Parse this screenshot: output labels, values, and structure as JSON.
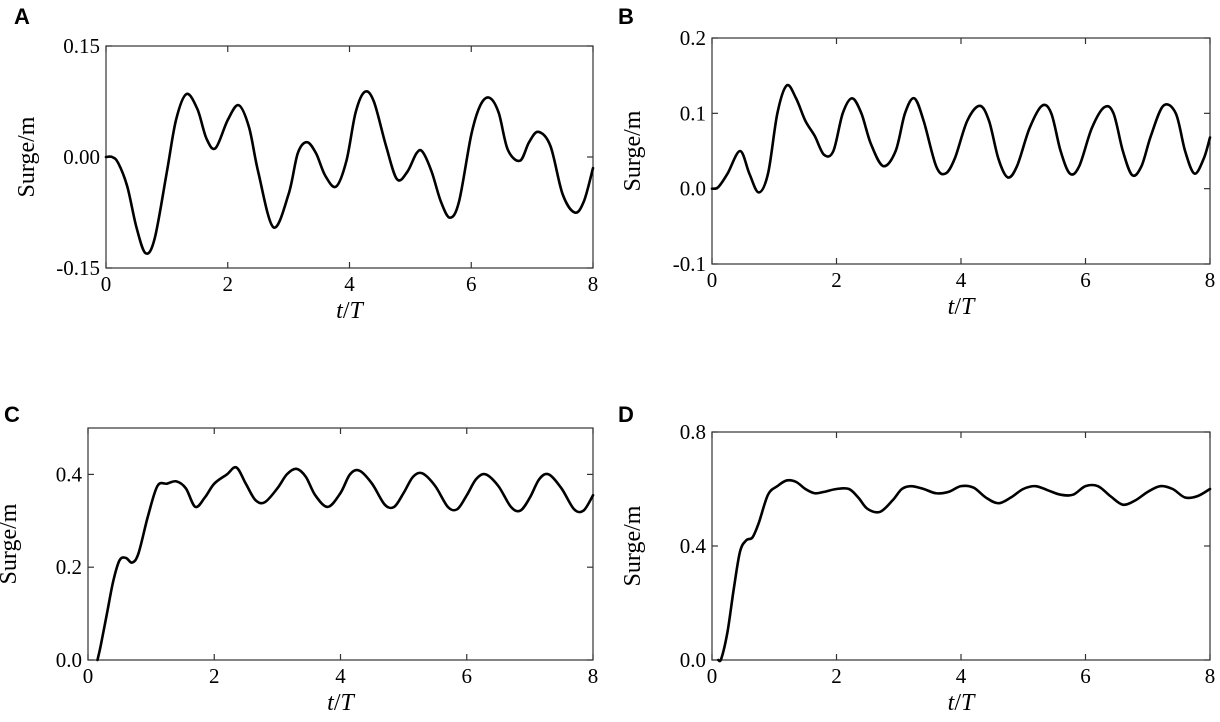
{
  "chart_data": [
    {
      "panel": "A",
      "type": "line",
      "xlabel": "t/T",
      "ylabel": "Surge/m",
      "xlim": [
        0,
        8
      ],
      "ylim": [
        -0.15,
        0.15
      ],
      "xticks": [
        "0",
        "2",
        "4",
        "6",
        "8"
      ],
      "yticks": [
        "-0.15",
        "0.00",
        "0.15"
      ],
      "grid": false,
      "series": [
        {
          "x": [
            0,
            0.1,
            0.2,
            0.35,
            0.5,
            0.65,
            0.8,
            1.0,
            1.15,
            1.32,
            1.5,
            1.65,
            1.8,
            2.0,
            2.18,
            2.35,
            2.5,
            2.75,
            3.0,
            3.15,
            3.3,
            3.45,
            3.6,
            3.78,
            3.95,
            4.1,
            4.25,
            4.4,
            4.6,
            4.78,
            4.95,
            5.1,
            5.2,
            5.35,
            5.5,
            5.65,
            5.8,
            6.0,
            6.15,
            6.3,
            6.45,
            6.6,
            6.8,
            6.95,
            7.1,
            7.3,
            7.5,
            7.7,
            7.85,
            8.0
          ],
          "y": [
            0.0,
            0.0,
            -0.008,
            -0.04,
            -0.095,
            -0.13,
            -0.11,
            -0.02,
            0.05,
            0.085,
            0.065,
            0.025,
            0.012,
            0.05,
            0.07,
            0.04,
            -0.02,
            -0.095,
            -0.05,
            0.005,
            0.02,
            0.005,
            -0.025,
            -0.04,
            -0.005,
            0.06,
            0.088,
            0.075,
            0.015,
            -0.03,
            -0.02,
            0.005,
            0.007,
            -0.02,
            -0.06,
            -0.082,
            -0.06,
            0.03,
            0.07,
            0.08,
            0.06,
            0.01,
            -0.005,
            0.02,
            0.034,
            0.015,
            -0.05,
            -0.075,
            -0.06,
            -0.015
          ]
        }
      ]
    },
    {
      "panel": "B",
      "type": "line",
      "xlabel": "t/T",
      "ylabel": "Surge/m",
      "xlim": [
        0,
        8
      ],
      "ylim": [
        -0.1,
        0.2
      ],
      "xticks": [
        "0",
        "2",
        "4",
        "6",
        "8"
      ],
      "yticks": [
        "-0.1",
        "0.0",
        "0.1",
        "0.2"
      ],
      "grid": false,
      "series": [
        {
          "x": [
            0,
            0.1,
            0.25,
            0.45,
            0.6,
            0.75,
            0.9,
            1.05,
            1.2,
            1.35,
            1.5,
            1.65,
            1.8,
            1.95,
            2.1,
            2.25,
            2.4,
            2.55,
            2.75,
            2.95,
            3.1,
            3.25,
            3.4,
            3.6,
            3.75,
            3.9,
            4.1,
            4.3,
            4.45,
            4.6,
            4.75,
            4.9,
            5.1,
            5.3,
            5.45,
            5.6,
            5.75,
            5.9,
            6.1,
            6.3,
            6.45,
            6.6,
            6.75,
            6.9,
            7.05,
            7.25,
            7.45,
            7.6,
            7.75,
            7.9,
            8.0
          ],
          "y": [
            0.0,
            0.002,
            0.02,
            0.05,
            0.02,
            -0.005,
            0.02,
            0.1,
            0.137,
            0.12,
            0.09,
            0.07,
            0.045,
            0.05,
            0.1,
            0.12,
            0.1,
            0.06,
            0.03,
            0.05,
            0.1,
            0.12,
            0.09,
            0.03,
            0.02,
            0.04,
            0.09,
            0.11,
            0.09,
            0.04,
            0.015,
            0.03,
            0.08,
            0.11,
            0.1,
            0.05,
            0.02,
            0.03,
            0.08,
            0.108,
            0.1,
            0.05,
            0.018,
            0.03,
            0.07,
            0.11,
            0.1,
            0.05,
            0.02,
            0.04,
            0.068
          ]
        }
      ]
    },
    {
      "panel": "C",
      "type": "line",
      "xlabel": "t/T",
      "ylabel": "Surge/m",
      "xlim": [
        0,
        8
      ],
      "ylim": [
        0.0,
        0.5
      ],
      "xticks": [
        "0",
        "2",
        "4",
        "6",
        "8"
      ],
      "yticks": [
        "0.0",
        "0.2",
        "0.4"
      ],
      "grid": false,
      "series": [
        {
          "x": [
            0.15,
            0.2,
            0.3,
            0.4,
            0.5,
            0.6,
            0.7,
            0.8,
            0.95,
            1.1,
            1.25,
            1.4,
            1.55,
            1.7,
            1.85,
            2.0,
            2.2,
            2.35,
            2.5,
            2.65,
            2.8,
            3.0,
            3.15,
            3.3,
            3.45,
            3.6,
            3.8,
            4.0,
            4.15,
            4.3,
            4.5,
            4.7,
            4.85,
            5.0,
            5.15,
            5.3,
            5.5,
            5.7,
            5.85,
            6.0,
            6.15,
            6.3,
            6.5,
            6.7,
            6.85,
            7.0,
            7.15,
            7.3,
            7.5,
            7.7,
            7.85,
            8.0
          ],
          "y": [
            0.0,
            0.03,
            0.1,
            0.17,
            0.215,
            0.22,
            0.21,
            0.23,
            0.31,
            0.375,
            0.38,
            0.385,
            0.37,
            0.33,
            0.35,
            0.38,
            0.4,
            0.415,
            0.38,
            0.345,
            0.34,
            0.37,
            0.4,
            0.412,
            0.395,
            0.355,
            0.33,
            0.36,
            0.4,
            0.408,
            0.38,
            0.335,
            0.33,
            0.36,
            0.395,
            0.402,
            0.375,
            0.33,
            0.325,
            0.355,
            0.39,
            0.4,
            0.375,
            0.33,
            0.322,
            0.35,
            0.39,
            0.4,
            0.37,
            0.325,
            0.322,
            0.355
          ]
        }
      ]
    },
    {
      "panel": "D",
      "type": "line",
      "xlabel": "t/T",
      "ylabel": "Surge/m",
      "xlim": [
        0,
        8
      ],
      "ylim": [
        0.0,
        0.8
      ],
      "xticks": [
        "0",
        "2",
        "4",
        "6",
        "8"
      ],
      "yticks": [
        "0.0",
        "0.4",
        "0.8"
      ],
      "grid": false,
      "series": [
        {
          "x": [
            0.1,
            0.15,
            0.25,
            0.35,
            0.45,
            0.55,
            0.65,
            0.75,
            0.9,
            1.05,
            1.2,
            1.35,
            1.5,
            1.65,
            1.8,
            2.0,
            2.2,
            2.35,
            2.5,
            2.7,
            2.9,
            3.05,
            3.2,
            3.4,
            3.6,
            3.8,
            4.0,
            4.2,
            4.4,
            4.6,
            4.8,
            5.0,
            5.2,
            5.4,
            5.6,
            5.8,
            6.0,
            6.2,
            6.4,
            6.6,
            6.8,
            7.0,
            7.2,
            7.4,
            7.6,
            7.8,
            8.0
          ],
          "y": [
            0.0,
            0.005,
            0.1,
            0.25,
            0.38,
            0.42,
            0.43,
            0.48,
            0.58,
            0.61,
            0.63,
            0.625,
            0.6,
            0.585,
            0.59,
            0.6,
            0.6,
            0.57,
            0.53,
            0.52,
            0.56,
            0.6,
            0.61,
            0.6,
            0.585,
            0.59,
            0.61,
            0.605,
            0.57,
            0.55,
            0.57,
            0.6,
            0.61,
            0.595,
            0.58,
            0.58,
            0.61,
            0.61,
            0.575,
            0.545,
            0.56,
            0.59,
            0.61,
            0.6,
            0.57,
            0.575,
            0.6
          ]
        }
      ]
    }
  ]
}
